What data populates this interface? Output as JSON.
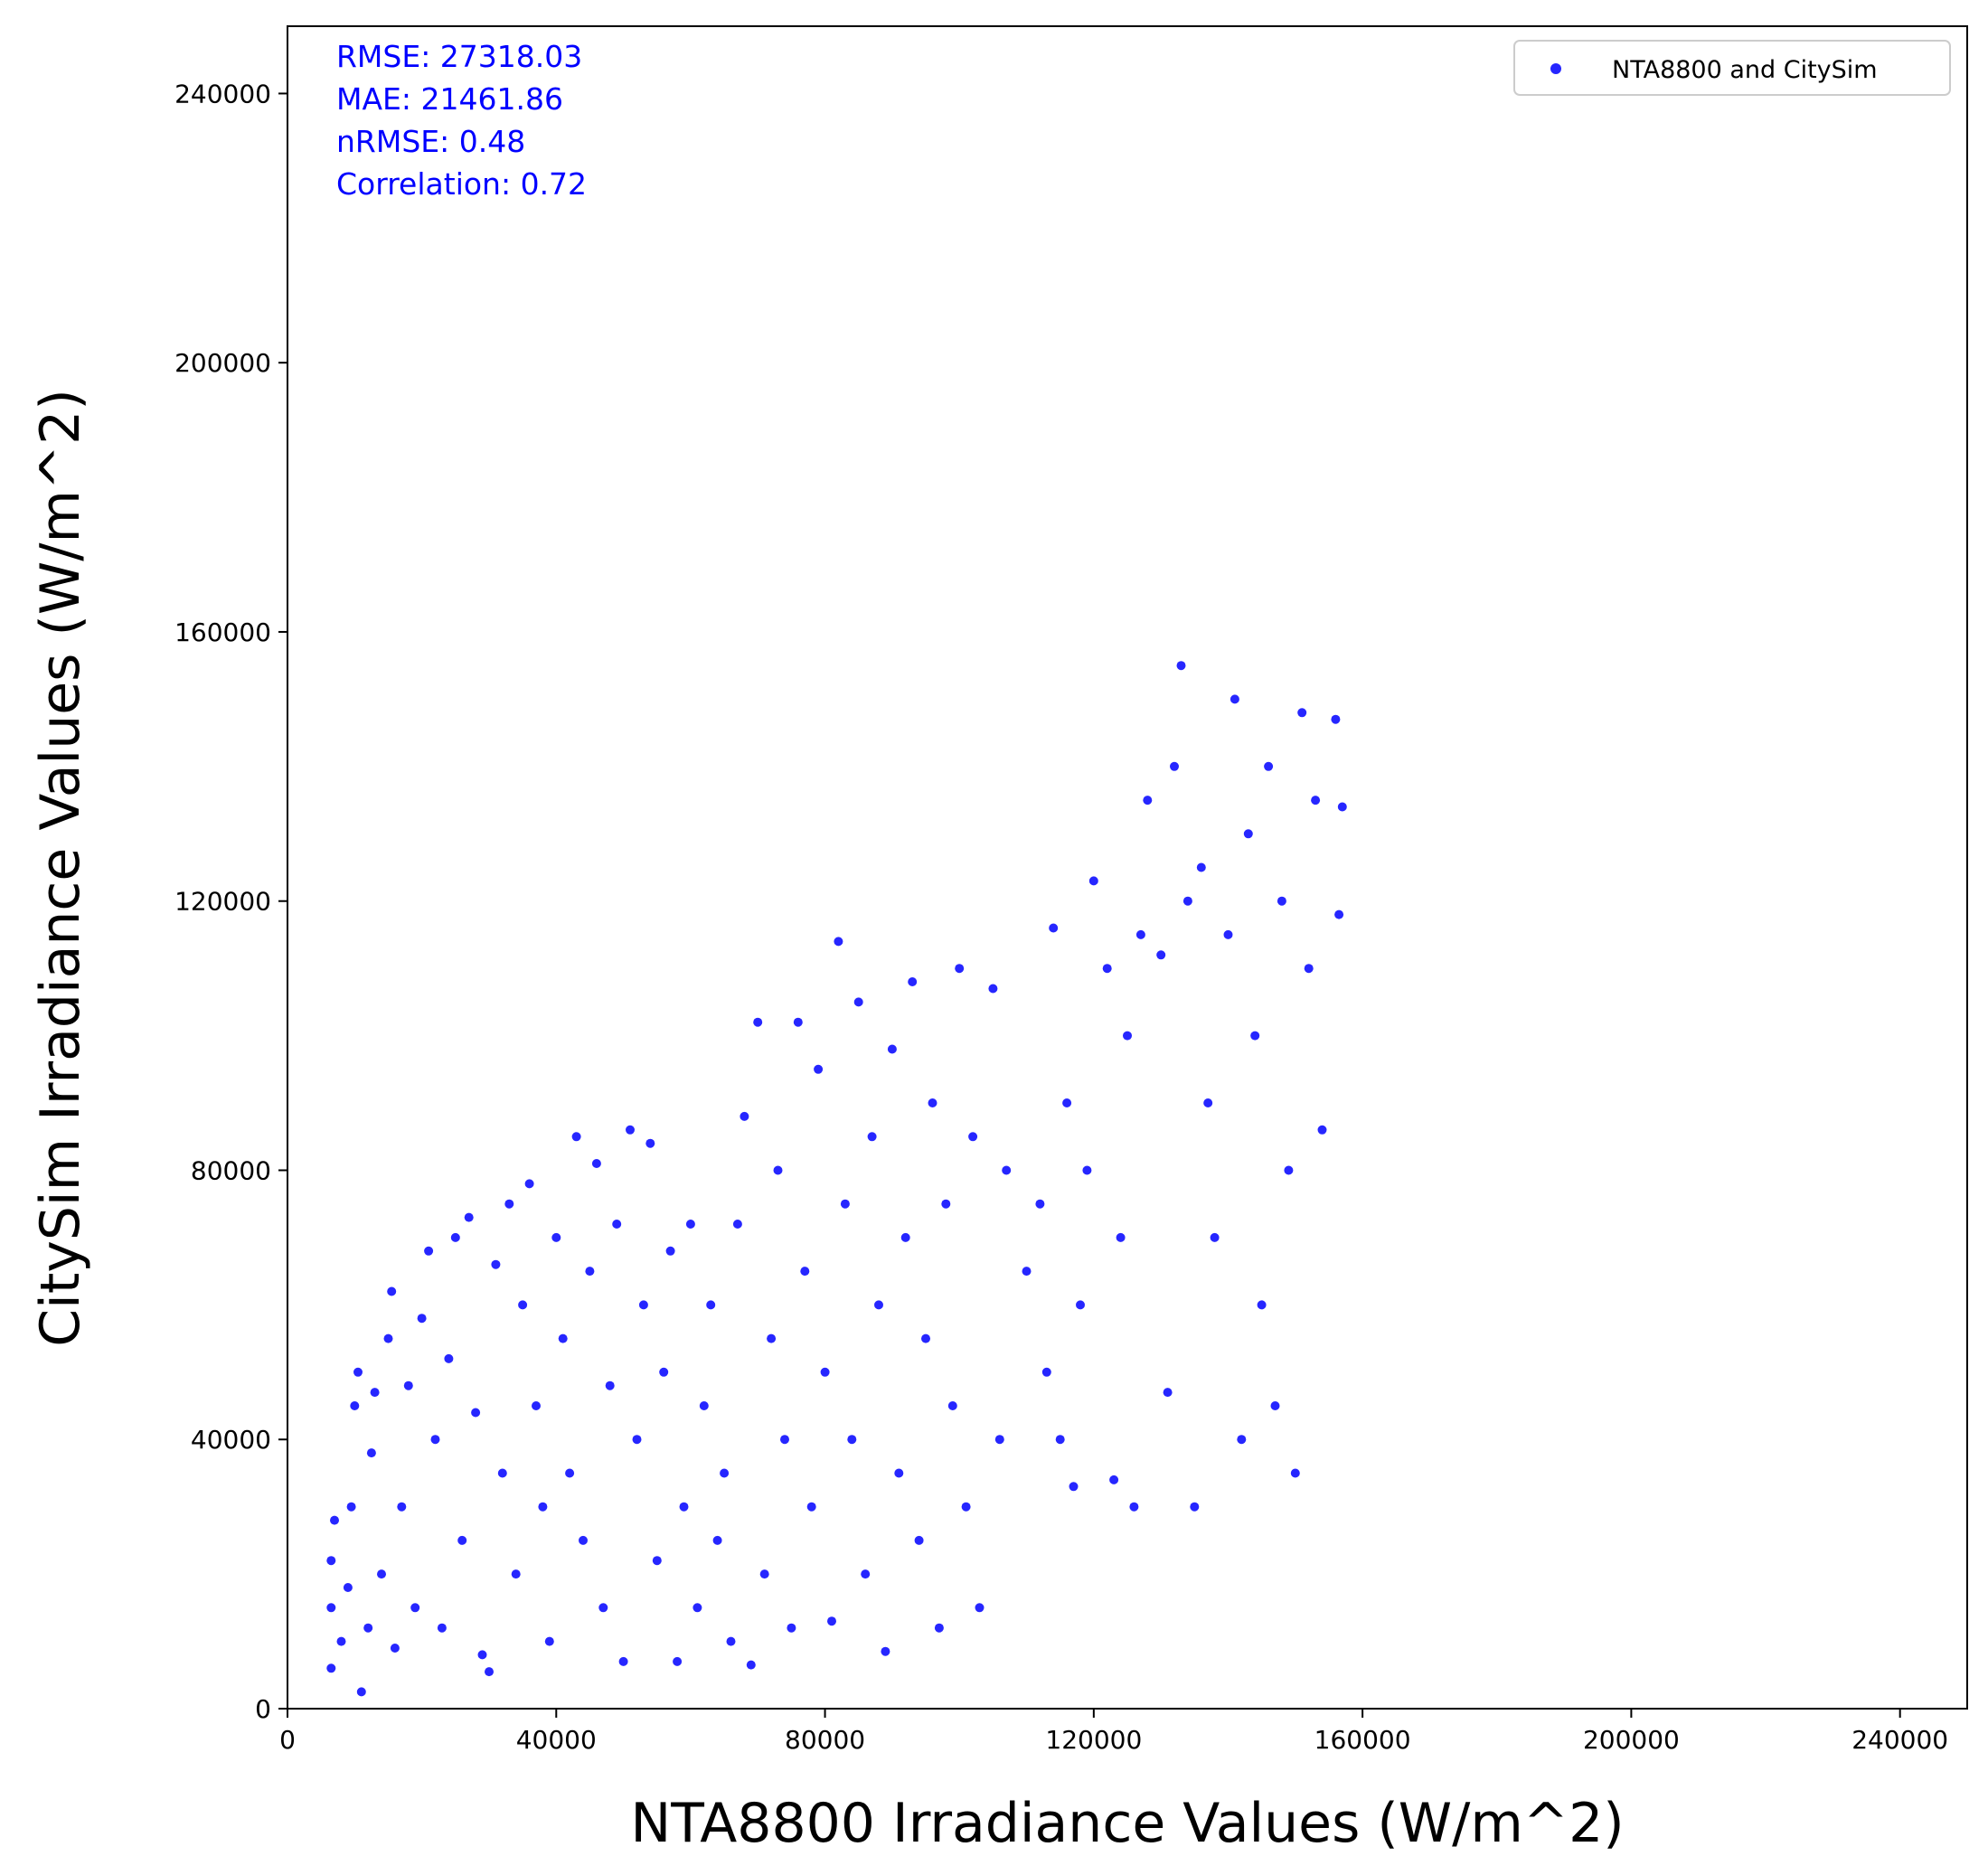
{
  "chart_data": {
    "type": "scatter",
    "xlabel": "NTA8800 Irradiance Values (W/m^2)",
    "ylabel": "CitySim Irradiance Values (W/m^2)",
    "xlim": [
      0,
      250000
    ],
    "ylim": [
      0,
      250000
    ],
    "x_ticks": [
      0,
      40000,
      80000,
      120000,
      160000,
      200000,
      240000
    ],
    "y_ticks": [
      0,
      40000,
      80000,
      120000,
      160000,
      200000,
      240000
    ],
    "x_tick_labels": [
      "0",
      "40000",
      "80000",
      "120000",
      "160000",
      "200000",
      "240000"
    ],
    "y_tick_labels": [
      "0",
      "40000",
      "80000",
      "120000",
      "160000",
      "200000",
      "240000"
    ],
    "grid": false,
    "legend_position": "top-right",
    "series": [
      {
        "name": "NTA8800 and CitySim",
        "color": "#0000ff",
        "points": [
          [
            6500,
            6000
          ],
          [
            6500,
            15000
          ],
          [
            6500,
            22000
          ],
          [
            7000,
            28000
          ],
          [
            8000,
            10000
          ],
          [
            9000,
            18000
          ],
          [
            9500,
            30000
          ],
          [
            10000,
            45000
          ],
          [
            10500,
            50000
          ],
          [
            11000,
            2500
          ],
          [
            12000,
            12000
          ],
          [
            12500,
            38000
          ],
          [
            13000,
            47000
          ],
          [
            14000,
            20000
          ],
          [
            15000,
            55000
          ],
          [
            15500,
            62000
          ],
          [
            16000,
            9000
          ],
          [
            17000,
            30000
          ],
          [
            18000,
            48000
          ],
          [
            19000,
            15000
          ],
          [
            20000,
            58000
          ],
          [
            21000,
            68000
          ],
          [
            22000,
            40000
          ],
          [
            23000,
            12000
          ],
          [
            24000,
            52000
          ],
          [
            25000,
            70000
          ],
          [
            26000,
            25000
          ],
          [
            27000,
            73000
          ],
          [
            28000,
            44000
          ],
          [
            29000,
            8000
          ],
          [
            30000,
            5500
          ],
          [
            31000,
            66000
          ],
          [
            32000,
            35000
          ],
          [
            33000,
            75000
          ],
          [
            34000,
            20000
          ],
          [
            35000,
            60000
          ],
          [
            36000,
            78000
          ],
          [
            37000,
            45000
          ],
          [
            38000,
            30000
          ],
          [
            39000,
            10000
          ],
          [
            40000,
            70000
          ],
          [
            41000,
            55000
          ],
          [
            42000,
            35000
          ],
          [
            43000,
            85000
          ],
          [
            44000,
            25000
          ],
          [
            45000,
            65000
          ],
          [
            46000,
            81000
          ],
          [
            47000,
            15000
          ],
          [
            48000,
            48000
          ],
          [
            49000,
            72000
          ],
          [
            50000,
            7000
          ],
          [
            51000,
            86000
          ],
          [
            52000,
            40000
          ],
          [
            53000,
            60000
          ],
          [
            54000,
            84000
          ],
          [
            55000,
            22000
          ],
          [
            56000,
            50000
          ],
          [
            57000,
            68000
          ],
          [
            58000,
            7000
          ],
          [
            59000,
            30000
          ],
          [
            60000,
            72000
          ],
          [
            61000,
            15000
          ],
          [
            62000,
            45000
          ],
          [
            63000,
            60000
          ],
          [
            64000,
            25000
          ],
          [
            65000,
            35000
          ],
          [
            66000,
            10000
          ],
          [
            67000,
            72000
          ],
          [
            68000,
            88000
          ],
          [
            69000,
            6500
          ],
          [
            70000,
            102000
          ],
          [
            71000,
            20000
          ],
          [
            72000,
            55000
          ],
          [
            73000,
            80000
          ],
          [
            74000,
            40000
          ],
          [
            75000,
            12000
          ],
          [
            76000,
            102000
          ],
          [
            77000,
            65000
          ],
          [
            78000,
            30000
          ],
          [
            79000,
            95000
          ],
          [
            80000,
            50000
          ],
          [
            81000,
            13000
          ],
          [
            82000,
            114000
          ],
          [
            83000,
            75000
          ],
          [
            84000,
            40000
          ],
          [
            85000,
            105000
          ],
          [
            86000,
            20000
          ],
          [
            87000,
            85000
          ],
          [
            88000,
            60000
          ],
          [
            89000,
            8500
          ],
          [
            90000,
            98000
          ],
          [
            91000,
            35000
          ],
          [
            92000,
            70000
          ],
          [
            93000,
            108000
          ],
          [
            94000,
            25000
          ],
          [
            95000,
            55000
          ],
          [
            96000,
            90000
          ],
          [
            97000,
            12000
          ],
          [
            98000,
            75000
          ],
          [
            99000,
            45000
          ],
          [
            100000,
            110000
          ],
          [
            101000,
            30000
          ],
          [
            102000,
            85000
          ],
          [
            103000,
            15000
          ],
          [
            105000,
            107000
          ],
          [
            106000,
            40000
          ],
          [
            107000,
            80000
          ],
          [
            110000,
            65000
          ],
          [
            112000,
            75000
          ],
          [
            113000,
            50000
          ],
          [
            114000,
            116000
          ],
          [
            115000,
            40000
          ],
          [
            116000,
            90000
          ],
          [
            117000,
            33000
          ],
          [
            118000,
            60000
          ],
          [
            119000,
            80000
          ],
          [
            120000,
            123000
          ],
          [
            122000,
            110000
          ],
          [
            123000,
            34000
          ],
          [
            124000,
            70000
          ],
          [
            125000,
            100000
          ],
          [
            126000,
            30000
          ],
          [
            127000,
            115000
          ],
          [
            128000,
            135000
          ],
          [
            130000,
            112000
          ],
          [
            131000,
            47000
          ],
          [
            132000,
            140000
          ],
          [
            133000,
            155000
          ],
          [
            134000,
            120000
          ],
          [
            135000,
            30000
          ],
          [
            136000,
            125000
          ],
          [
            137000,
            90000
          ],
          [
            138000,
            70000
          ],
          [
            140000,
            115000
          ],
          [
            141000,
            150000
          ],
          [
            142000,
            40000
          ],
          [
            143000,
            130000
          ],
          [
            144000,
            100000
          ],
          [
            145000,
            60000
          ],
          [
            146000,
            140000
          ],
          [
            147000,
            45000
          ],
          [
            148000,
            120000
          ],
          [
            149000,
            80000
          ],
          [
            150000,
            35000
          ],
          [
            151000,
            148000
          ],
          [
            152000,
            110000
          ],
          [
            153000,
            135000
          ],
          [
            154000,
            86000
          ],
          [
            156000,
            147000
          ],
          [
            156500,
            118000
          ],
          [
            157000,
            134000
          ]
        ]
      }
    ]
  },
  "stats": {
    "rmse": "RMSE: 27318.03",
    "mae": "MAE: 21461.86",
    "nrmse": "nRMSE: 0.48",
    "correlation": "Correlation: 0.72"
  },
  "legend": {
    "label": "NTA8800 and CitySim"
  }
}
